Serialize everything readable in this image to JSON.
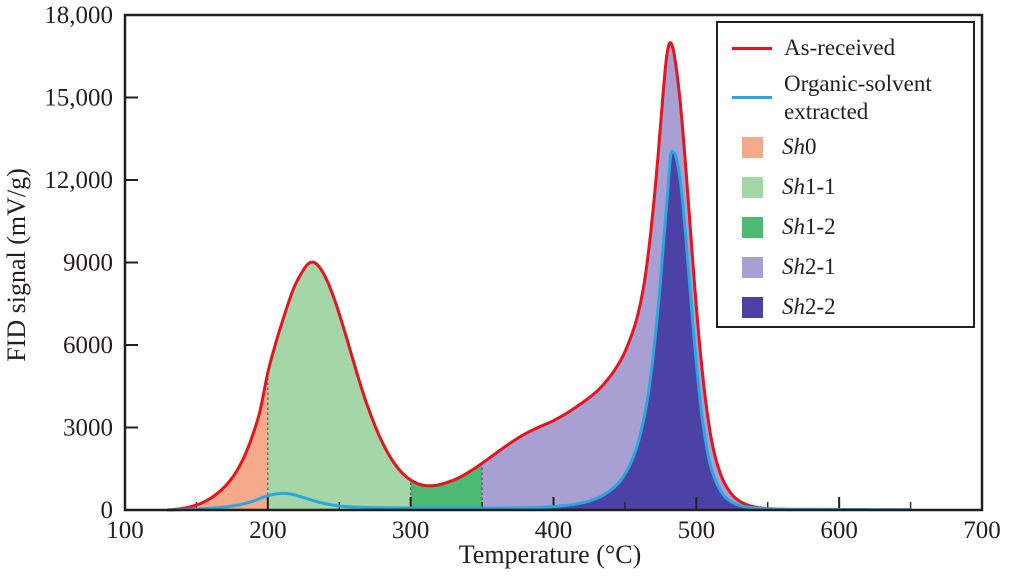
{
  "chart_data": {
    "type": "area",
    "title": "",
    "xlabel": "Temperature (°C)",
    "ylabel": "FID signal (mV/g)",
    "xlim": [
      100,
      700
    ],
    "ylim": [
      0,
      18000
    ],
    "x_ticks": [
      100,
      200,
      300,
      400,
      500,
      600,
      700
    ],
    "x_tick_labels": [
      "100",
      "200",
      "300",
      "400",
      "500",
      "600",
      "700"
    ],
    "x_minor_step": 50,
    "y_ticks": [
      0,
      3000,
      6000,
      9000,
      12000,
      15000,
      18000
    ],
    "y_tick_labels": [
      "0",
      "3000",
      "6000",
      "9000",
      "12,000",
      "15,000",
      "18,000"
    ],
    "grid": false,
    "legend_position": "upper right",
    "frame_color": "#231f20",
    "series": [
      {
        "id": "as-received",
        "name": "As-received",
        "color": "#e8141d",
        "peaks": [
          {
            "t": 230,
            "v": 9000
          },
          {
            "t": 481,
            "v": 17000
          }
        ],
        "points": [
          [
            130,
            0
          ],
          [
            138,
            40
          ],
          [
            146,
            120
          ],
          [
            154,
            260
          ],
          [
            162,
            500
          ],
          [
            170,
            860
          ],
          [
            178,
            1400
          ],
          [
            186,
            2250
          ],
          [
            194,
            3500
          ],
          [
            200,
            5000
          ],
          [
            206,
            6150
          ],
          [
            212,
            7150
          ],
          [
            218,
            8050
          ],
          [
            224,
            8650
          ],
          [
            229,
            8980
          ],
          [
            234,
            8950
          ],
          [
            240,
            8500
          ],
          [
            246,
            7750
          ],
          [
            252,
            6800
          ],
          [
            258,
            5750
          ],
          [
            264,
            4700
          ],
          [
            270,
            3750
          ],
          [
            278,
            2700
          ],
          [
            286,
            1900
          ],
          [
            294,
            1350
          ],
          [
            302,
            1030
          ],
          [
            310,
            890
          ],
          [
            318,
            900
          ],
          [
            326,
            1010
          ],
          [
            334,
            1180
          ],
          [
            342,
            1420
          ],
          [
            350,
            1700
          ],
          [
            358,
            2000
          ],
          [
            366,
            2300
          ],
          [
            374,
            2580
          ],
          [
            382,
            2820
          ],
          [
            390,
            3020
          ],
          [
            398,
            3200
          ],
          [
            406,
            3420
          ],
          [
            414,
            3680
          ],
          [
            422,
            3970
          ],
          [
            430,
            4300
          ],
          [
            438,
            4750
          ],
          [
            446,
            5350
          ],
          [
            452,
            6000
          ],
          [
            458,
            6900
          ],
          [
            463,
            8100
          ],
          [
            467,
            9600
          ],
          [
            471,
            11600
          ],
          [
            474,
            13400
          ],
          [
            477,
            15300
          ],
          [
            479,
            16400
          ],
          [
            481,
            16950
          ],
          [
            483,
            16900
          ],
          [
            485,
            16400
          ],
          [
            488,
            15200
          ],
          [
            491,
            13500
          ],
          [
            494,
            11500
          ],
          [
            497,
            9400
          ],
          [
            500,
            7400
          ],
          [
            503,
            5650
          ],
          [
            506,
            4200
          ],
          [
            509,
            3050
          ],
          [
            512,
            2200
          ],
          [
            516,
            1450
          ],
          [
            520,
            950
          ],
          [
            525,
            560
          ],
          [
            530,
            330
          ],
          [
            536,
            180
          ],
          [
            542,
            100
          ],
          [
            550,
            50
          ],
          [
            558,
            25
          ],
          [
            566,
            12
          ]
        ]
      },
      {
        "id": "organic-solvent-extracted",
        "name": "Organic-solvent extracted",
        "color": "#2aa7e0",
        "peaks": [
          {
            "t": 210,
            "v": 600
          },
          {
            "t": 482,
            "v": 13000
          }
        ],
        "points": [
          [
            130,
            0
          ],
          [
            140,
            15
          ],
          [
            150,
            35
          ],
          [
            160,
            65
          ],
          [
            170,
            110
          ],
          [
            180,
            190
          ],
          [
            190,
            330
          ],
          [
            196,
            450
          ],
          [
            202,
            545
          ],
          [
            208,
            598
          ],
          [
            213,
            600
          ],
          [
            218,
            560
          ],
          [
            224,
            470
          ],
          [
            230,
            370
          ],
          [
            236,
            280
          ],
          [
            242,
            210
          ],
          [
            248,
            160
          ],
          [
            256,
            120
          ],
          [
            264,
            100
          ],
          [
            272,
            88
          ],
          [
            282,
            80
          ],
          [
            294,
            74
          ],
          [
            310,
            70
          ],
          [
            330,
            68
          ],
          [
            350,
            68
          ],
          [
            365,
            72
          ],
          [
            380,
            82
          ],
          [
            392,
            100
          ],
          [
            402,
            130
          ],
          [
            412,
            185
          ],
          [
            420,
            260
          ],
          [
            428,
            380
          ],
          [
            436,
            580
          ],
          [
            444,
            900
          ],
          [
            450,
            1300
          ],
          [
            456,
            1950
          ],
          [
            461,
            2800
          ],
          [
            466,
            4100
          ],
          [
            470,
            5700
          ],
          [
            474,
            7800
          ],
          [
            477,
            9700
          ],
          [
            480,
            11600
          ],
          [
            482,
            12900
          ],
          [
            484,
            13000
          ],
          [
            486,
            12800
          ],
          [
            489,
            11900
          ],
          [
            492,
            10300
          ],
          [
            495,
            8400
          ],
          [
            498,
            6500
          ],
          [
            501,
            4800
          ],
          [
            504,
            3400
          ],
          [
            507,
            2350
          ],
          [
            510,
            1600
          ],
          [
            514,
            1000
          ],
          [
            518,
            620
          ],
          [
            522,
            390
          ],
          [
            527,
            230
          ],
          [
            532,
            140
          ],
          [
            538,
            90
          ],
          [
            546,
            55
          ],
          [
            556,
            38
          ],
          [
            570,
            28
          ],
          [
            590,
            22
          ],
          [
            610,
            18
          ],
          [
            630,
            15
          ],
          [
            650,
            13
          ]
        ]
      }
    ],
    "regions": [
      {
        "id": "sh0",
        "label": "Sh0",
        "series_index": 0,
        "t_start": 130,
        "t_end": 200,
        "color": "#f4a98a"
      },
      {
        "id": "sh1-1",
        "label": "Sh1-1",
        "series_index": 0,
        "t_start": 200,
        "t_end": 300,
        "color": "#a4d6a7"
      },
      {
        "id": "sh1-2",
        "label": "Sh1-2",
        "series_index": 0,
        "t_start": 300,
        "t_end": 350,
        "color": "#4eb975"
      },
      {
        "id": "sh2-1",
        "label": "Sh2-1",
        "series_index": 0,
        "t_start": 350,
        "t_end": 566,
        "color": "#a89fd3"
      },
      {
        "id": "sh2-2",
        "label": "Sh2-2",
        "series_index": 1,
        "t_start": 350,
        "t_end": 650,
        "color": "#4c41a4"
      }
    ],
    "region_boundaries": [
      200,
      300,
      350
    ]
  },
  "legend": {
    "entries": [
      {
        "id": "as-received",
        "kind": "line",
        "color": "#e8141d",
        "label": "As-received",
        "two_line": false
      },
      {
        "id": "organic-solvent-extracted",
        "kind": "line",
        "color": "#2aa7e0",
        "label": "Organic-solvent extracted",
        "two_line": true
      },
      {
        "id": "sh0",
        "kind": "swatch",
        "color": "#f4a98a",
        "label_italic": "Sh",
        "label_rest": "0"
      },
      {
        "id": "sh1-1",
        "kind": "swatch",
        "color": "#a4d6a7",
        "label_italic": "Sh",
        "label_rest": "1-1"
      },
      {
        "id": "sh1-2",
        "kind": "swatch",
        "color": "#4eb975",
        "label_italic": "Sh",
        "label_rest": "1-2"
      },
      {
        "id": "sh2-1",
        "kind": "swatch",
        "color": "#a89fd3",
        "label_italic": "Sh",
        "label_rest": "2-1"
      },
      {
        "id": "sh2-2",
        "kind": "swatch",
        "color": "#4c41a4",
        "label_italic": "Sh",
        "label_rest": "2-2"
      }
    ]
  }
}
